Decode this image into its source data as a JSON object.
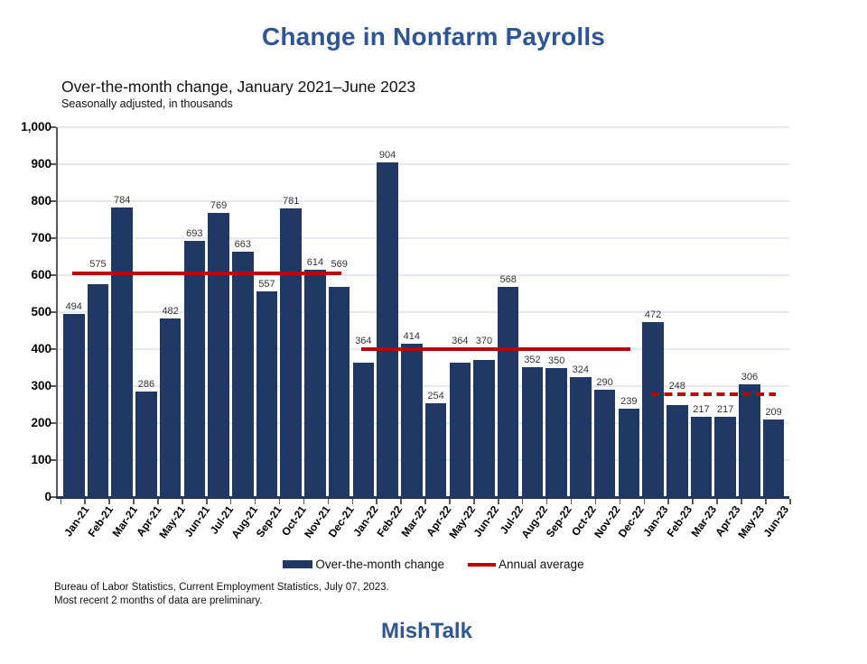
{
  "title": {
    "text": "Change in Nonfarm Payrolls",
    "color": "#2E5597"
  },
  "subtitle": "Over-the-month change, January 2021–June 2023",
  "subtitle2": "Seasonally adjusted, in thousands",
  "chart_data": {
    "type": "bar",
    "categories": [
      "Jan-21",
      "Feb-21",
      "Mar-21",
      "Apr-21",
      "May-21",
      "Jun-21",
      "Jul-21",
      "Aug-21",
      "Sep-21",
      "Oct-21",
      "Nov-21",
      "Dec-21",
      "Jan-22",
      "Feb-22",
      "Mar-22",
      "Apr-22",
      "May-22",
      "Jun-22",
      "Jul-22",
      "Aug-22",
      "Sep-22",
      "Oct-22",
      "Nov-22",
      "Dec-22",
      "Jan-23",
      "Feb-23",
      "Mar-23",
      "Apr-23",
      "May-23",
      "Jun-23"
    ],
    "values": [
      494,
      575,
      784,
      286,
      482,
      693,
      769,
      663,
      557,
      781,
      614,
      569,
      364,
      904,
      414,
      254,
      364,
      370,
      568,
      352,
      350,
      324,
      290,
      239,
      472,
      248,
      217,
      217,
      306,
      209
    ],
    "ylim": [
      0,
      1000
    ],
    "ytick_step": 100,
    "ytick_labels": [
      "0",
      "100",
      "200",
      "300",
      "400",
      "500",
      "600",
      "700",
      "800",
      "900",
      "1,000"
    ],
    "grid": "horizontal",
    "x_tick_rotation_deg": -55,
    "bar_color": "#1F3864",
    "avg_line_color": "#C00000",
    "gridline_color": "#E4E9F4",
    "annual_averages": [
      {
        "year": "2021",
        "value": 606,
        "from_index": 0,
        "to_index": 11,
        "style": "solid"
      },
      {
        "year": "2022",
        "value": 399,
        "from_index": 12,
        "to_index": 23,
        "style": "solid"
      },
      {
        "year": "2023",
        "value": 278,
        "from_index": 24,
        "to_index": 29,
        "style": "dashed"
      }
    ],
    "legend": {
      "position": "bottom",
      "items": [
        {
          "label": "Over-the-month change",
          "swatch": "bar",
          "color": "#1F3864"
        },
        {
          "label": "Annual average",
          "swatch": "line",
          "color": "#C00000"
        }
      ]
    }
  },
  "source": {
    "line1": "Bureau of Labor Statistics, Current Employment Statistics, July 07, 2023.",
    "line2": "Most recent 2 months of data are preliminary."
  },
  "branding": "MishTalk"
}
